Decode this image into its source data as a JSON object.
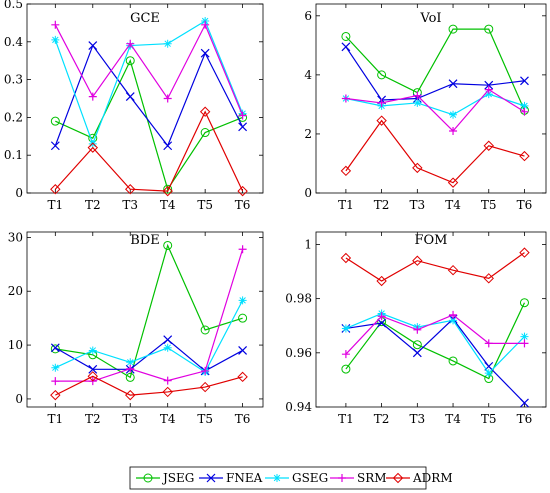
{
  "chart_data": [
    {
      "type": "line",
      "title": "GCE",
      "categories": [
        "T1",
        "T2",
        "T3",
        "T4",
        "T5",
        "T6"
      ],
      "ylim": [
        0,
        0.5
      ],
      "yticks": [
        0,
        0.1,
        0.2,
        0.3,
        0.4,
        0.5
      ],
      "ytick_labels": [
        "0",
        "0.1",
        "0.2",
        "0.3",
        "0.4",
        "0.5"
      ],
      "series": [
        {
          "name": "JSEG",
          "values": [
            0.19,
            0.145,
            0.35,
            0.01,
            0.16,
            0.2
          ]
        },
        {
          "name": "FNEA",
          "values": [
            0.125,
            0.39,
            0.255,
            0.125,
            0.37,
            0.175
          ]
        },
        {
          "name": "GSEG",
          "values": [
            0.405,
            0.13,
            0.39,
            0.395,
            0.455,
            0.21
          ]
        },
        {
          "name": "SRM",
          "values": [
            0.445,
            0.255,
            0.395,
            0.25,
            0.445,
            0.205
          ]
        },
        {
          "name": "ADRM",
          "values": [
            0.01,
            0.12,
            0.01,
            0.005,
            0.215,
            0.005
          ]
        }
      ]
    },
    {
      "type": "line",
      "title": "VoI",
      "categories": [
        "T1",
        "T2",
        "T3",
        "T4",
        "T5",
        "T6"
      ],
      "ylim": [
        0,
        6.4
      ],
      "yticks": [
        0,
        2,
        4,
        6
      ],
      "ytick_labels": [
        "0",
        "2",
        "4",
        "6"
      ],
      "series": [
        {
          "name": "JSEG",
          "values": [
            5.3,
            4.0,
            3.4,
            5.55,
            5.55,
            2.8
          ]
        },
        {
          "name": "FNEA",
          "values": [
            4.95,
            3.15,
            3.2,
            3.7,
            3.65,
            3.8
          ]
        },
        {
          "name": "GSEG",
          "values": [
            3.2,
            2.95,
            3.05,
            2.65,
            3.35,
            2.95
          ]
        },
        {
          "name": "SRM",
          "values": [
            3.2,
            3.05,
            3.3,
            2.1,
            3.5,
            2.75
          ]
        },
        {
          "name": "ADRM",
          "values": [
            0.75,
            2.45,
            0.85,
            0.35,
            1.6,
            1.25
          ]
        }
      ]
    },
    {
      "type": "line",
      "title": "BDE",
      "categories": [
        "T1",
        "T2",
        "T3",
        "T4",
        "T5",
        "T6"
      ],
      "ylim": [
        -1.5,
        31
      ],
      "yticks": [
        0,
        10,
        20,
        30
      ],
      "ytick_labels": [
        "0",
        "10",
        "20",
        "30"
      ],
      "series": [
        {
          "name": "JSEG",
          "values": [
            9.3,
            8.2,
            4.0,
            28.5,
            12.8,
            15.0
          ]
        },
        {
          "name": "FNEA",
          "values": [
            9.5,
            5.5,
            5.5,
            11.0,
            5.2,
            9.0
          ]
        },
        {
          "name": "GSEG",
          "values": [
            5.8,
            9.0,
            6.8,
            9.5,
            5.0,
            18.3
          ]
        },
        {
          "name": "SRM",
          "values": [
            3.3,
            3.3,
            5.6,
            3.4,
            5.2,
            27.8
          ]
        },
        {
          "name": "ADRM",
          "values": [
            0.7,
            4.2,
            0.7,
            1.3,
            2.2,
            4.1
          ]
        }
      ]
    },
    {
      "type": "line",
      "title": "FOM",
      "categories": [
        "T1",
        "T2",
        "T3",
        "T4",
        "T5",
        "T6"
      ],
      "ylim": [
        0.94,
        1.0046
      ],
      "yticks": [
        0.94,
        0.96,
        0.98,
        1.0
      ],
      "ytick_labels": [
        "0.94",
        "0.96",
        "0.98",
        "1"
      ],
      "series": [
        {
          "name": "JSEG",
          "values": [
            0.954,
            0.9715,
            0.963,
            0.957,
            0.9505,
            0.9785
          ]
        },
        {
          "name": "FNEA",
          "values": [
            0.969,
            0.971,
            0.96,
            0.9725,
            0.955,
            0.9415
          ]
        },
        {
          "name": "GSEG",
          "values": [
            0.969,
            0.9745,
            0.9695,
            0.972,
            0.9525,
            0.966
          ]
        },
        {
          "name": "SRM",
          "values": [
            0.9595,
            0.9735,
            0.9685,
            0.974,
            0.9635,
            0.9635
          ]
        },
        {
          "name": "ADRM",
          "values": [
            0.995,
            0.9865,
            0.994,
            0.9905,
            0.9875,
            0.997
          ]
        }
      ]
    }
  ],
  "legend": {
    "items": [
      {
        "name": "JSEG",
        "color": "#00c000",
        "marker": "circle"
      },
      {
        "name": "FNEA",
        "color": "#0000e0",
        "marker": "x"
      },
      {
        "name": "GSEG",
        "color": "#00e0ff",
        "marker": "asterisk"
      },
      {
        "name": "SRM",
        "color": "#e000e0",
        "marker": "plus"
      },
      {
        "name": "ADRM",
        "color": "#e00000",
        "marker": "diamond"
      }
    ]
  }
}
